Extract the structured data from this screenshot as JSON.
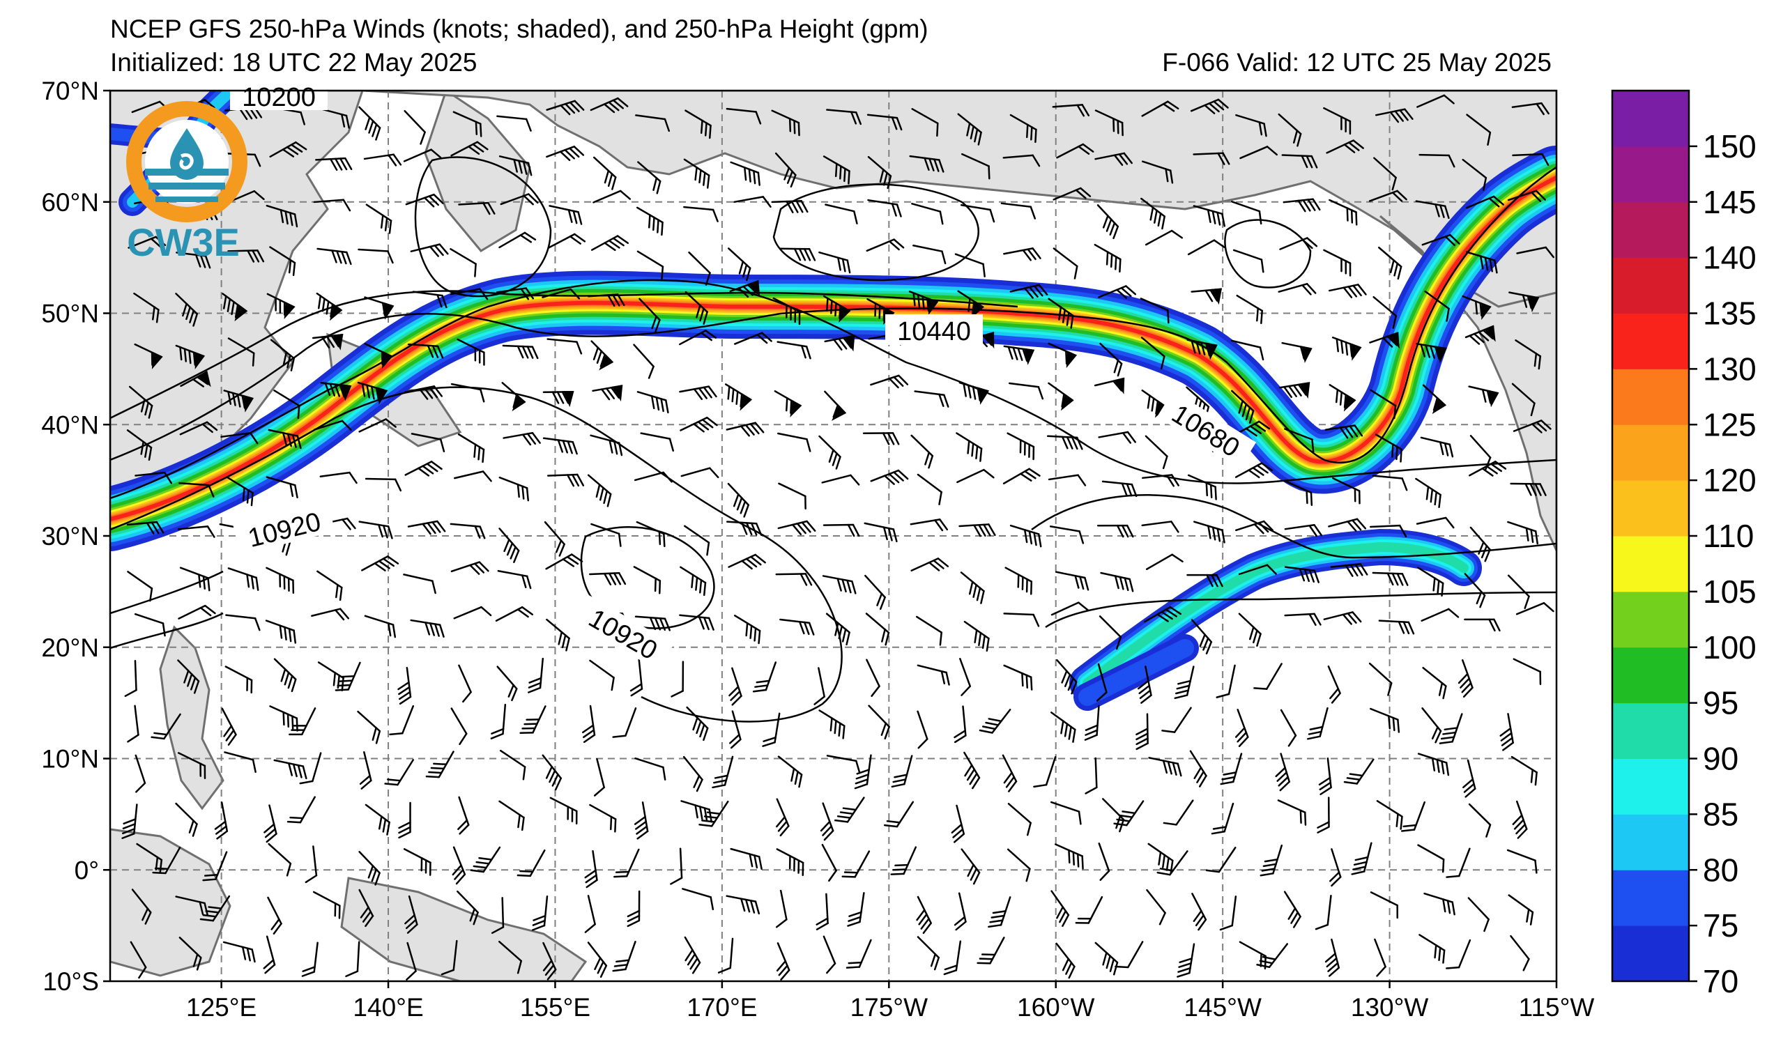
{
  "title": {
    "line1": "NCEP GFS 250-hPa Winds (knots; shaded), and 250-hPa Height (gpm)",
    "initialized": "Initialized: 18 UTC 22 May 2025",
    "valid": "F-066  Valid: 12 UTC 25 May 2025"
  },
  "logo": {
    "text": "CW3E",
    "ring_color": "#f39a1f",
    "wave_color": "#2a93b4"
  },
  "map": {
    "lat_ticks": [
      "70°N",
      "60°N",
      "50°N",
      "40°N",
      "30°N",
      "20°N",
      "10°N",
      "0°",
      "10°S"
    ],
    "lon_ticks": [
      "125°E",
      "140°E",
      "155°E",
      "170°E",
      "175°W",
      "160°W",
      "145°W",
      "130°W",
      "115°W"
    ],
    "lat_range": [
      -10,
      70
    ],
    "lon_range": [
      115,
      245
    ],
    "land_color": "#e1e1e1",
    "gridlines": true
  },
  "contour_labels": [
    "10200",
    "10440",
    "10680",
    "10920",
    "10920"
  ],
  "colorbar": {
    "ticks": [
      "70",
      "75",
      "80",
      "85",
      "90",
      "95",
      "100",
      "105",
      "110",
      "120",
      "125",
      "130",
      "135",
      "140",
      "145",
      "150"
    ],
    "colors": [
      "#1a2ed6",
      "#1e4ff0",
      "#1ec8f5",
      "#1ef0ec",
      "#20dca8",
      "#21bd25",
      "#73d01d",
      "#f7f71c",
      "#fbc01c",
      "#fca31c",
      "#fa7a1c",
      "#fa231c",
      "#d91c2c",
      "#b51a5c",
      "#97198a",
      "#7a1ea6"
    ]
  }
}
